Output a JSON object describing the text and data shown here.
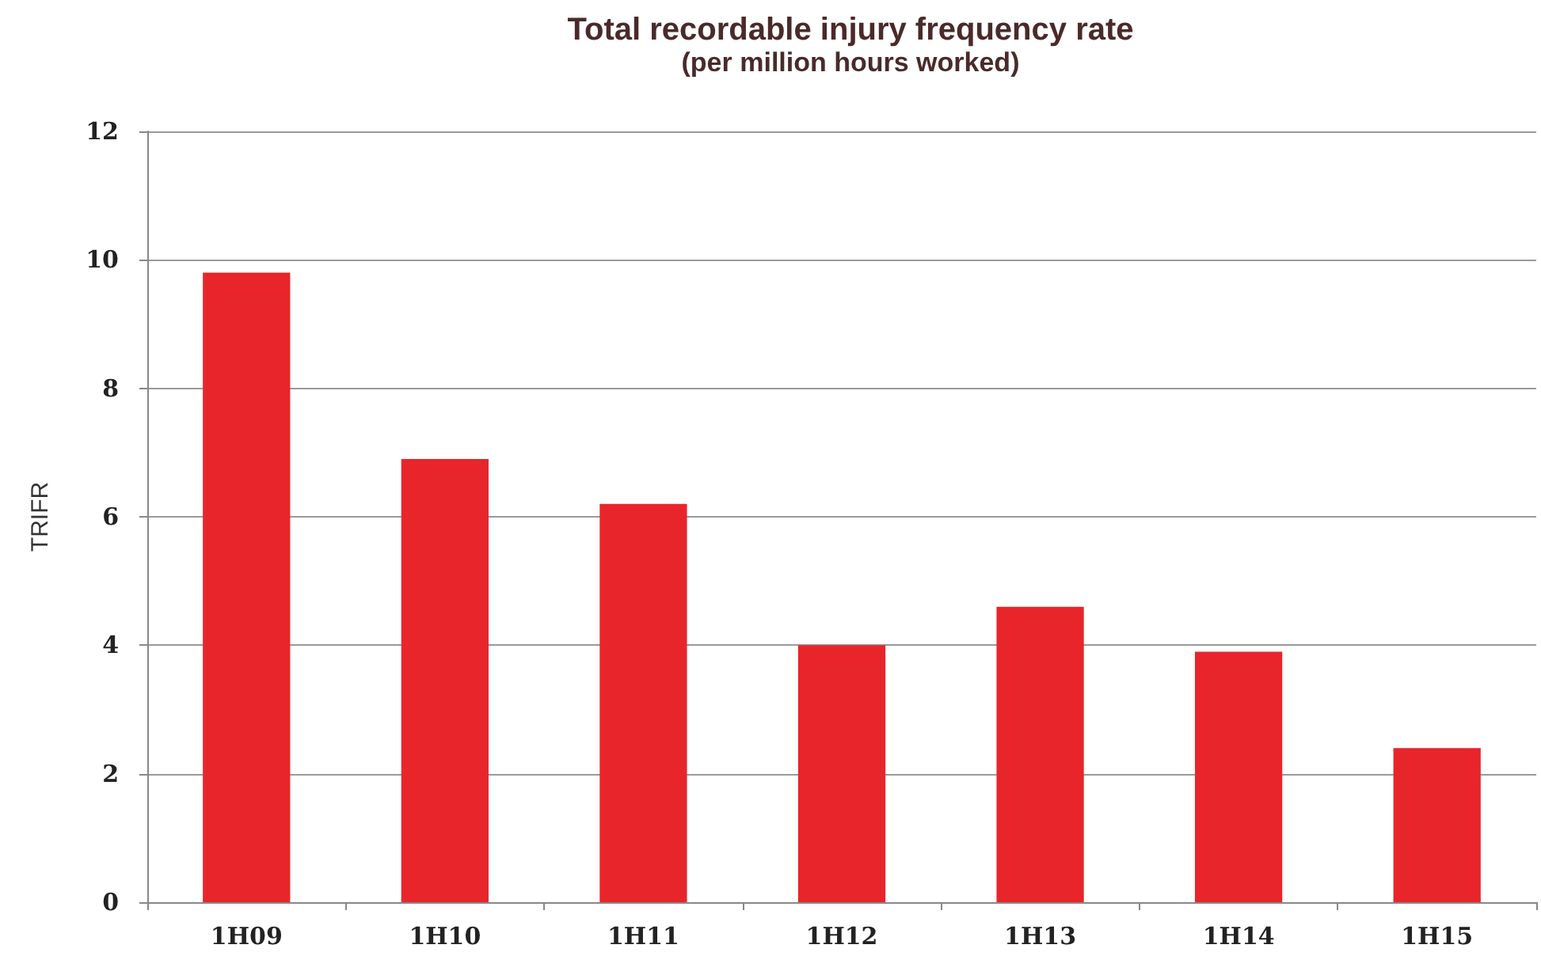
{
  "chart_data": {
    "type": "bar",
    "title": "Total recordable injury frequency rate",
    "subtitle": "(per million hours worked)",
    "ylabel": "TRIFR",
    "categories": [
      "1H09",
      "1H10",
      "1H11",
      "1H12",
      "1H13",
      "1H14",
      "1H15"
    ],
    "values": [
      9.8,
      6.9,
      6.2,
      4.0,
      4.6,
      3.9,
      2.4
    ],
    "color": "#e8252b",
    "ylim": [
      0,
      12
    ],
    "yticks": [
      0,
      2,
      4,
      6,
      8,
      10,
      12
    ],
    "grid": "y"
  }
}
